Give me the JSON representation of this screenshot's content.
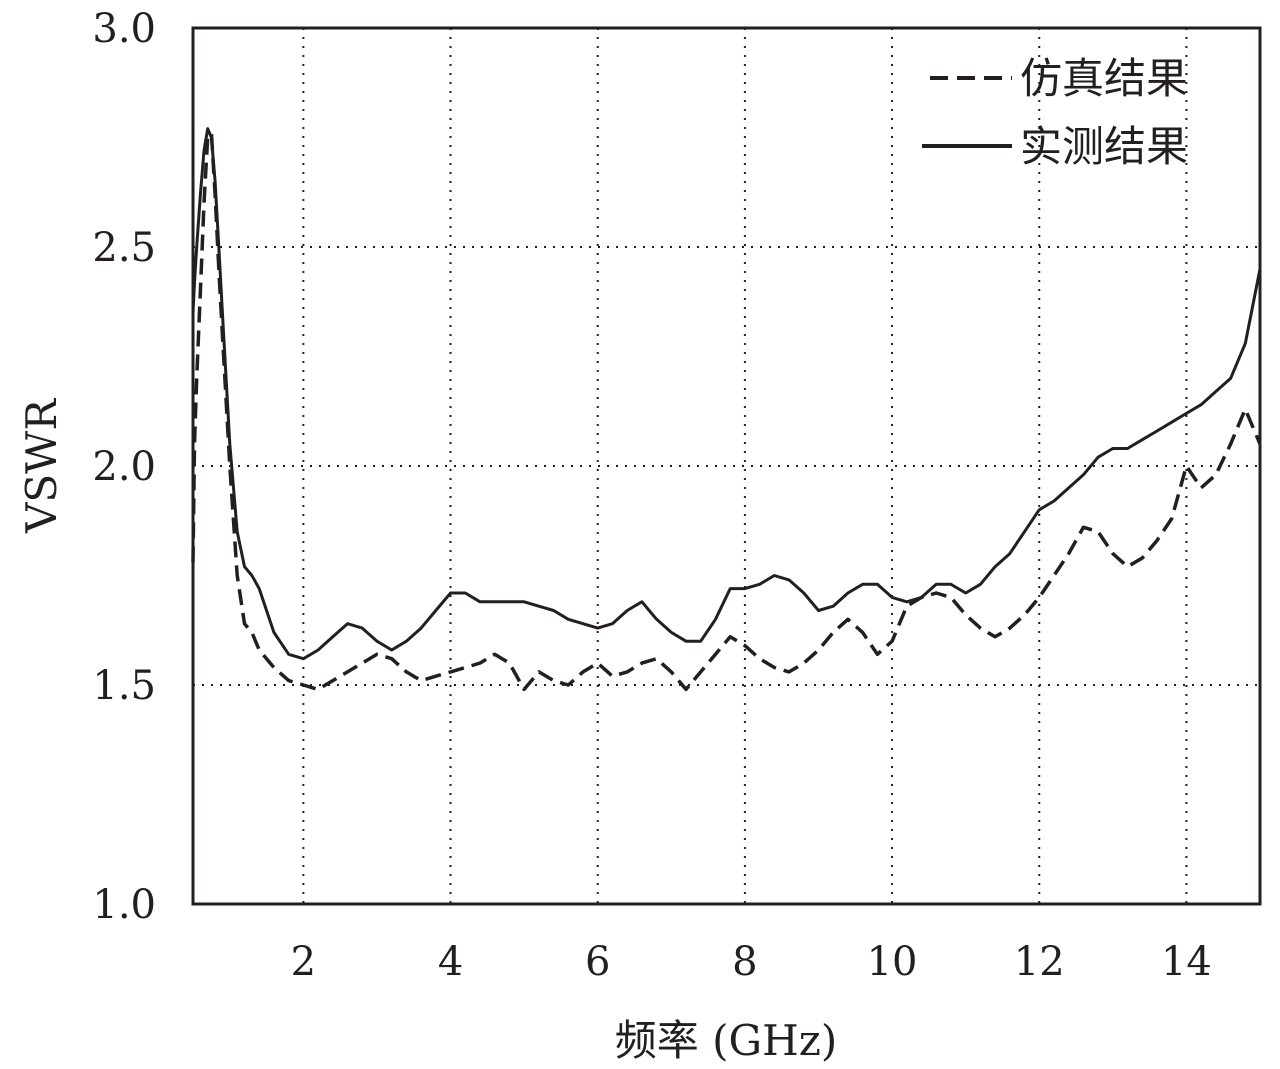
{
  "chart_data": {
    "type": "line",
    "title": "",
    "xlabel": "频率 (GHz)",
    "ylabel": "VSWR",
    "xlim": [
      0.5,
      15
    ],
    "ylim": [
      1.0,
      3.0
    ],
    "x_ticks": [
      2,
      4,
      6,
      8,
      10,
      12,
      14
    ],
    "x_tick_labels": [
      "2",
      "4",
      "6",
      "8",
      "10",
      "12",
      "14"
    ],
    "y_ticks": [
      1.0,
      1.5,
      2.0,
      2.5,
      3.0
    ],
    "y_tick_labels": [
      "1.0",
      "1.5",
      "2.0",
      "2.5",
      "3.0"
    ],
    "grid": true,
    "legend_position": "top-right",
    "series": [
      {
        "name": "仿真结果",
        "style": "dashed",
        "color": "#231f20",
        "x": [
          0.5,
          0.52,
          0.55,
          0.6,
          0.65,
          0.7,
          0.75,
          0.8,
          0.85,
          0.9,
          1.0,
          1.1,
          1.2,
          1.3,
          1.4,
          1.6,
          1.8,
          2.0,
          2.2,
          2.4,
          2.6,
          2.8,
          3.0,
          3.2,
          3.4,
          3.6,
          3.8,
          4.0,
          4.2,
          4.4,
          4.6,
          4.8,
          5.0,
          5.2,
          5.4,
          5.6,
          5.8,
          6.0,
          6.2,
          6.4,
          6.6,
          6.8,
          7.0,
          7.2,
          7.4,
          7.6,
          7.8,
          8.0,
          8.2,
          8.4,
          8.6,
          8.8,
          9.0,
          9.2,
          9.4,
          9.6,
          9.8,
          10.0,
          10.2,
          10.4,
          10.6,
          10.8,
          11.0,
          11.2,
          11.4,
          11.6,
          11.8,
          12.0,
          12.2,
          12.4,
          12.6,
          12.8,
          13.0,
          13.2,
          13.4,
          13.6,
          13.8,
          14.0,
          14.2,
          14.4,
          14.6,
          14.8,
          15.0
        ],
        "values": [
          1.78,
          2.05,
          2.2,
          2.4,
          2.6,
          2.75,
          2.76,
          2.62,
          2.45,
          2.3,
          2.0,
          1.75,
          1.64,
          1.62,
          1.58,
          1.54,
          1.51,
          1.5,
          1.49,
          1.51,
          1.53,
          1.55,
          1.57,
          1.56,
          1.53,
          1.51,
          1.52,
          1.53,
          1.54,
          1.55,
          1.57,
          1.55,
          1.49,
          1.53,
          1.51,
          1.5,
          1.53,
          1.55,
          1.52,
          1.53,
          1.55,
          1.56,
          1.53,
          1.49,
          1.53,
          1.57,
          1.61,
          1.59,
          1.56,
          1.54,
          1.53,
          1.55,
          1.58,
          1.62,
          1.65,
          1.62,
          1.57,
          1.6,
          1.68,
          1.7,
          1.71,
          1.7,
          1.66,
          1.63,
          1.61,
          1.63,
          1.66,
          1.7,
          1.75,
          1.8,
          1.86,
          1.85,
          1.8,
          1.77,
          1.79,
          1.83,
          1.88,
          2.0,
          1.95,
          1.98,
          2.05,
          2.13,
          2.05
        ]
      },
      {
        "name": "实测结果",
        "style": "solid",
        "color": "#231f20",
        "x": [
          0.5,
          0.52,
          0.55,
          0.6,
          0.65,
          0.7,
          0.75,
          0.8,
          0.85,
          0.9,
          1.0,
          1.1,
          1.2,
          1.3,
          1.4,
          1.6,
          1.8,
          2.0,
          2.2,
          2.4,
          2.6,
          2.8,
          3.0,
          3.2,
          3.4,
          3.6,
          3.8,
          4.0,
          4.2,
          4.4,
          4.6,
          4.8,
          5.0,
          5.2,
          5.4,
          5.6,
          5.8,
          6.0,
          6.2,
          6.4,
          6.6,
          6.8,
          7.0,
          7.2,
          7.4,
          7.6,
          7.8,
          8.0,
          8.2,
          8.4,
          8.6,
          8.8,
          9.0,
          9.2,
          9.4,
          9.6,
          9.8,
          10.0,
          10.2,
          10.4,
          10.6,
          10.8,
          11.0,
          11.2,
          11.4,
          11.6,
          11.8,
          12.0,
          12.2,
          12.4,
          12.6,
          12.8,
          13.0,
          13.2,
          13.4,
          13.6,
          13.8,
          14.0,
          14.2,
          14.4,
          14.6,
          14.8,
          15.0
        ],
        "values": [
          2.35,
          2.42,
          2.5,
          2.62,
          2.72,
          2.77,
          2.75,
          2.65,
          2.5,
          2.35,
          2.05,
          1.85,
          1.77,
          1.75,
          1.72,
          1.62,
          1.57,
          1.56,
          1.58,
          1.61,
          1.64,
          1.63,
          1.6,
          1.58,
          1.6,
          1.63,
          1.67,
          1.71,
          1.71,
          1.69,
          1.69,
          1.69,
          1.69,
          1.68,
          1.67,
          1.65,
          1.64,
          1.63,
          1.64,
          1.67,
          1.69,
          1.65,
          1.62,
          1.6,
          1.6,
          1.65,
          1.72,
          1.72,
          1.73,
          1.75,
          1.74,
          1.71,
          1.67,
          1.68,
          1.71,
          1.73,
          1.73,
          1.7,
          1.69,
          1.7,
          1.73,
          1.73,
          1.71,
          1.73,
          1.77,
          1.8,
          1.85,
          1.9,
          1.92,
          1.95,
          1.98,
          2.02,
          2.04,
          2.04,
          2.06,
          2.08,
          2.1,
          2.12,
          2.14,
          2.17,
          2.2,
          2.28,
          2.45
        ]
      }
    ]
  }
}
